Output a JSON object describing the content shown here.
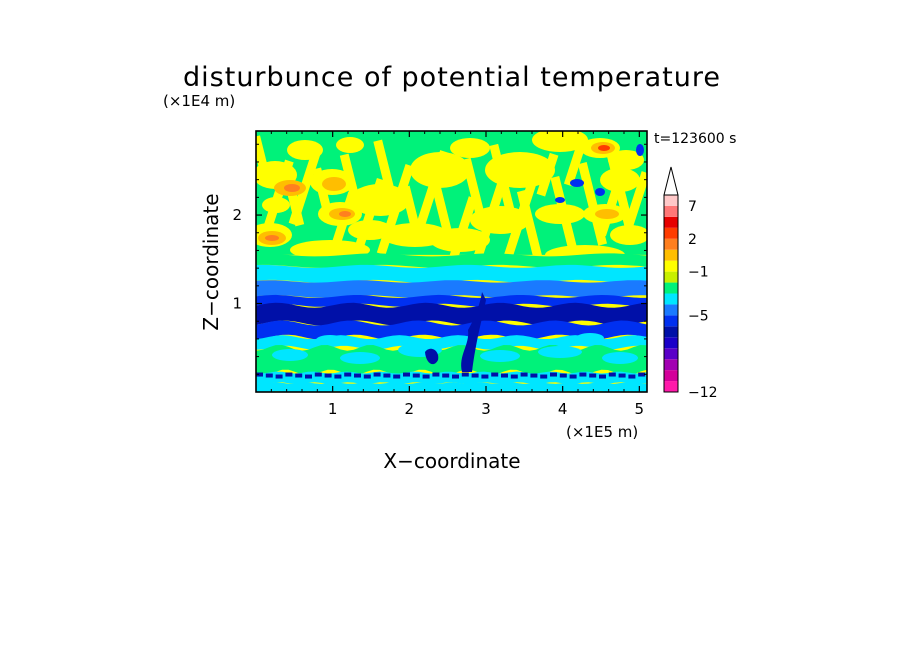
{
  "chart_data": {
    "type": "heatmap",
    "title": "disturbunce of potential temperature",
    "time_label": "t=123600 s",
    "xlabel": "X−coordinate",
    "ylabel": "Z−coordinate",
    "x_scale_label": "(×1E5 m)",
    "y_scale_label": "(×1E4 m)",
    "xlim": [
      0,
      5.1
    ],
    "ylim": [
      0,
      2.95
    ],
    "x_ticks": [
      1,
      2,
      3,
      4,
      5
    ],
    "x_tick_labels": [
      "1",
      "2",
      "3",
      "4",
      "5"
    ],
    "y_ticks": [
      1,
      2
    ],
    "y_tick_labels": [
      "1",
      "2"
    ],
    "colorbar": {
      "colors": [
        "#ff1aaa",
        "#d4009a",
        "#a200b2",
        "#5a00c8",
        "#1a00c8",
        "#0010a8",
        "#0030f0",
        "#1a7aff",
        "#00e6ff",
        "#00f27a",
        "#c8f000",
        "#ffff00",
        "#ffbe00",
        "#ff7f1f",
        "#ff3c00",
        "#e60000",
        "#ff7777",
        "#ffc8c8"
      ],
      "extend_top_color": "#ffffff",
      "tick_labels": [
        "−12",
        "−5",
        "−1",
        "2",
        "7"
      ],
      "tick_levels": [
        0,
        7,
        11,
        14,
        17
      ]
    },
    "bands": [
      {
        "zmin": 0.0,
        "zmax": 0.1,
        "desc": "cyan"
      },
      {
        "zmin": 0.1,
        "zmax": 0.22,
        "desc": "blue/cyan mottled"
      },
      {
        "zmin": 0.22,
        "zmax": 0.5,
        "desc": "green/cyan"
      },
      {
        "zmin": 0.5,
        "zmax": 0.62,
        "desc": "cyan"
      },
      {
        "zmin": 0.62,
        "zmax": 0.78,
        "desc": "blue"
      },
      {
        "zmin": 0.78,
        "zmax": 1.08,
        "desc": "dark blue"
      },
      {
        "zmin": 1.08,
        "zmax": 1.25,
        "desc": "blue"
      },
      {
        "zmin": 1.25,
        "zmax": 1.42,
        "desc": "cyan"
      },
      {
        "zmin": 1.42,
        "zmax": 1.55,
        "desc": "green"
      },
      {
        "zmin": 1.55,
        "zmax": 2.95,
        "desc": "yellow/orange/green wave pattern"
      }
    ]
  }
}
